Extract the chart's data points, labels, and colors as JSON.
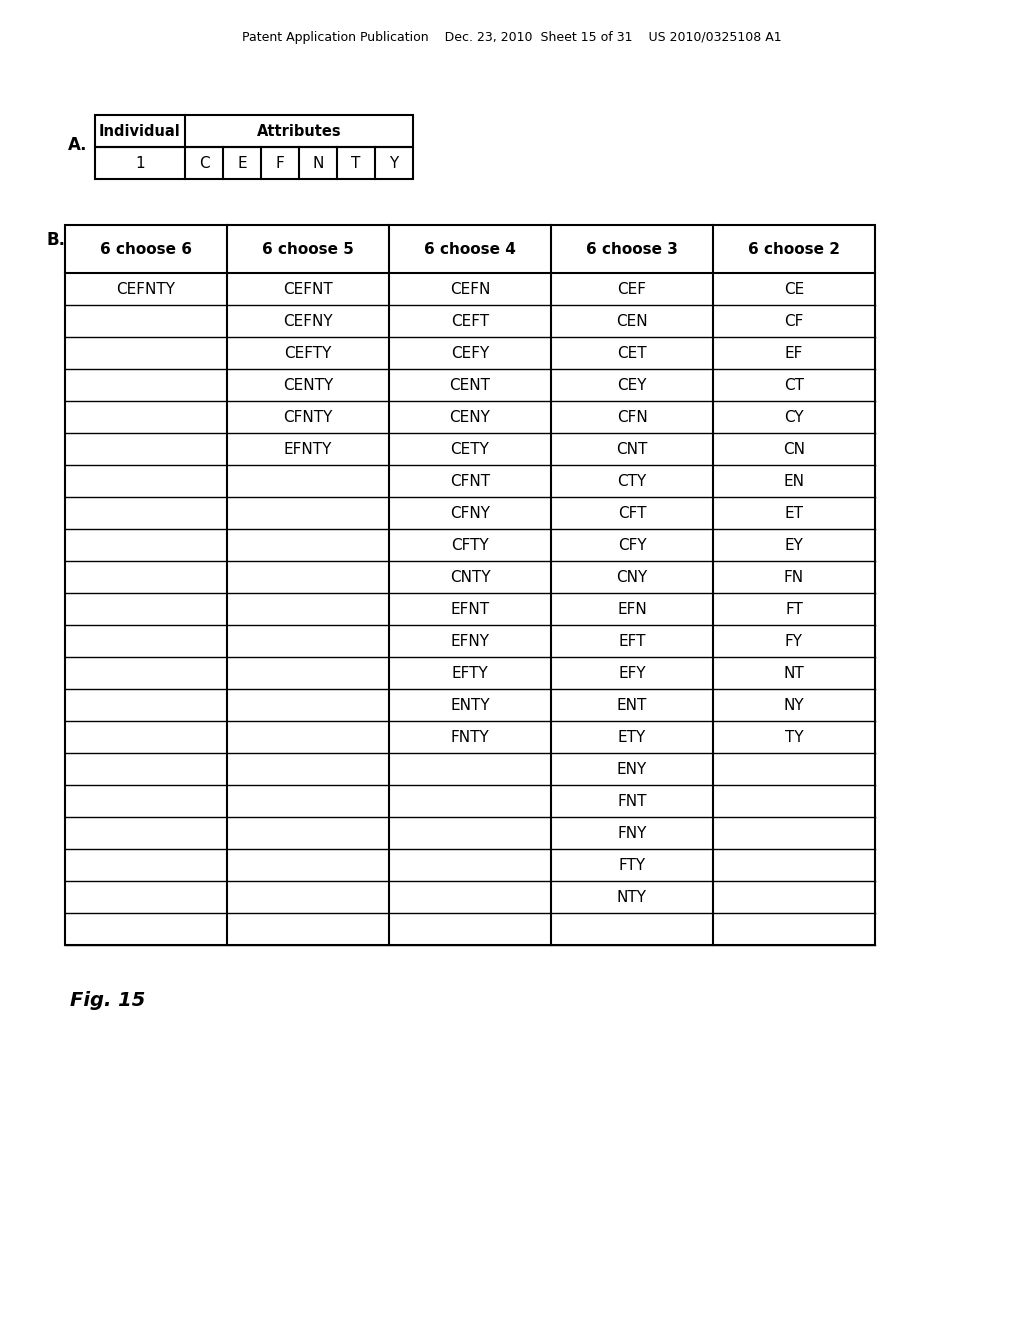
{
  "header_text": "Patent Application Publication    Dec. 23, 2010  Sheet 15 of 31    US 2010/0325108 A1",
  "label_A": "A.",
  "label_B": "B.",
  "fig_label": "Fig. 15",
  "table_A": {
    "headers": [
      "Individual",
      "Attributes"
    ],
    "row": [
      "1",
      "C",
      "E",
      "F",
      "N",
      "T",
      "Y"
    ]
  },
  "table_B": {
    "headers": [
      "6 choose 6",
      "6 choose 5",
      "6 choose 4",
      "6 choose 3",
      "6 choose 2"
    ],
    "col0": [
      "CEFNTY",
      "",
      "",
      "",
      "",
      "",
      "",
      "",
      "",
      "",
      "",
      "",
      "",
      "",
      "",
      "",
      "",
      "",
      "",
      "",
      ""
    ],
    "col1": [
      "CEFNT",
      "CEFNY",
      "CEFTY",
      "CENTY",
      "CFNTY",
      "EFNTY",
      "",
      "",
      "",
      "",
      "",
      "",
      "",
      "",
      "",
      "",
      "",
      "",
      "",
      "",
      ""
    ],
    "col2": [
      "CEFN",
      "CEFT",
      "CEFY",
      "CENT",
      "CENY",
      "CETY",
      "CFNT",
      "CFNY",
      "CFTY",
      "CNTY",
      "EFNT",
      "EFNY",
      "EFTY",
      "ENTY",
      "FNTY",
      "",
      "",
      "",
      "",
      "",
      ""
    ],
    "col3": [
      "CEF",
      "CEN",
      "CET",
      "CEY",
      "CFN",
      "CNT",
      "CTY",
      "CFT",
      "CFY",
      "CNY",
      "EFN",
      "EFT",
      "EFY",
      "ENT",
      "ETY",
      "ENY",
      "FNT",
      "FNY",
      "FTY",
      "NTY",
      ""
    ],
    "col4": [
      "CE",
      "CF",
      "EF",
      "CT",
      "CY",
      "CN",
      "EN",
      "ET",
      "EY",
      "FN",
      "FT",
      "FY",
      "NT",
      "NY",
      "TY",
      "",
      "",
      "",
      "",
      "",
      ""
    ]
  },
  "bg_color": "#ffffff",
  "text_color": "#000000",
  "font_size_header": 9,
  "font_size_table": 10,
  "font_size_fig": 13
}
